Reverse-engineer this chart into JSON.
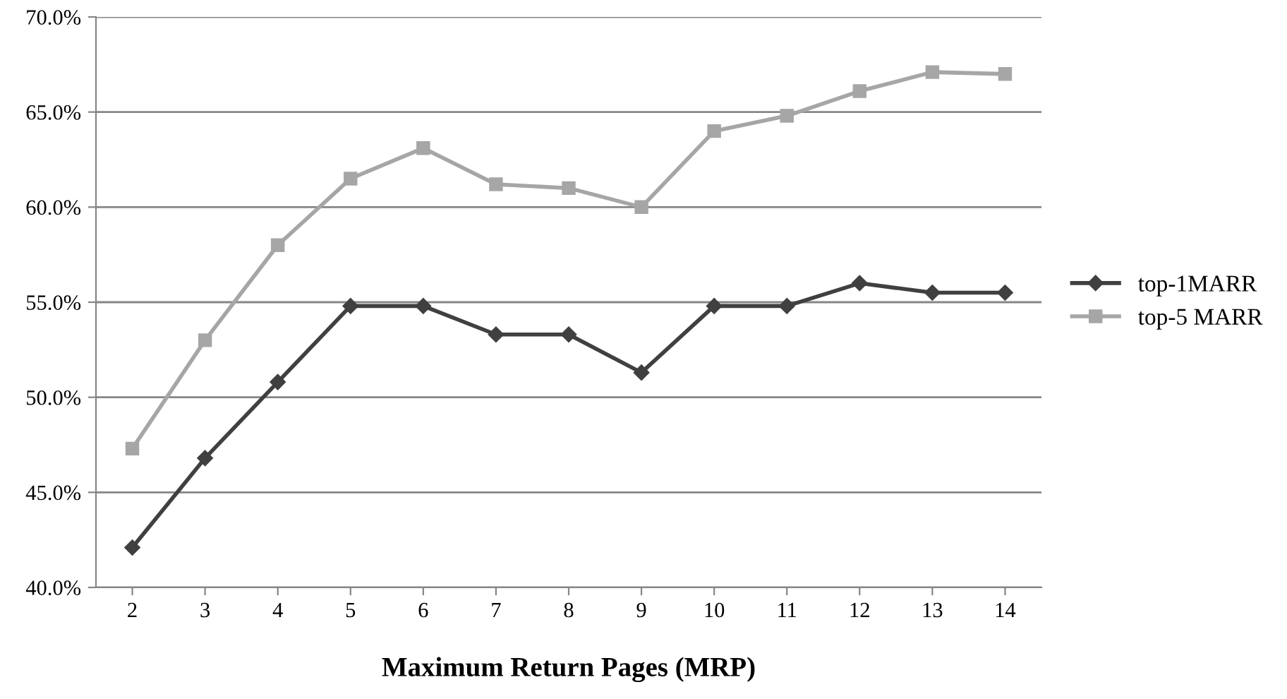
{
  "chart_data": {
    "type": "line",
    "xlabel": "Maximum Return Pages (MRP)",
    "categories": [
      "2",
      "3",
      "4",
      "5",
      "6",
      "7",
      "8",
      "9",
      "10",
      "11",
      "12",
      "13",
      "14"
    ],
    "series": [
      {
        "name": "top-1MARR",
        "color": "#404040",
        "marker": "diamond",
        "values": [
          42.1,
          46.8,
          50.8,
          54.8,
          54.8,
          53.3,
          53.3,
          51.3,
          54.8,
          54.8,
          56.0,
          55.5,
          55.5
        ]
      },
      {
        "name": "top-5 MARR",
        "color": "#a6a6a6",
        "marker": "square",
        "values": [
          47.3,
          53.0,
          58.0,
          61.5,
          63.1,
          61.2,
          61.0,
          60.0,
          64.0,
          64.8,
          66.1,
          67.1,
          67.0
        ]
      }
    ],
    "ylim": [
      40,
      70
    ],
    "yticks": [
      {
        "value": 40,
        "label": "40.0%"
      },
      {
        "value": 45,
        "label": "45.0%"
      },
      {
        "value": 50,
        "label": "50.0%"
      },
      {
        "value": 55,
        "label": "55.0%"
      },
      {
        "value": 60,
        "label": "60.0%"
      },
      {
        "value": 65,
        "label": "65.0%"
      },
      {
        "value": 70,
        "label": "70.0%"
      }
    ],
    "grid": "y",
    "legend": "right",
    "line_style": "solid"
  }
}
